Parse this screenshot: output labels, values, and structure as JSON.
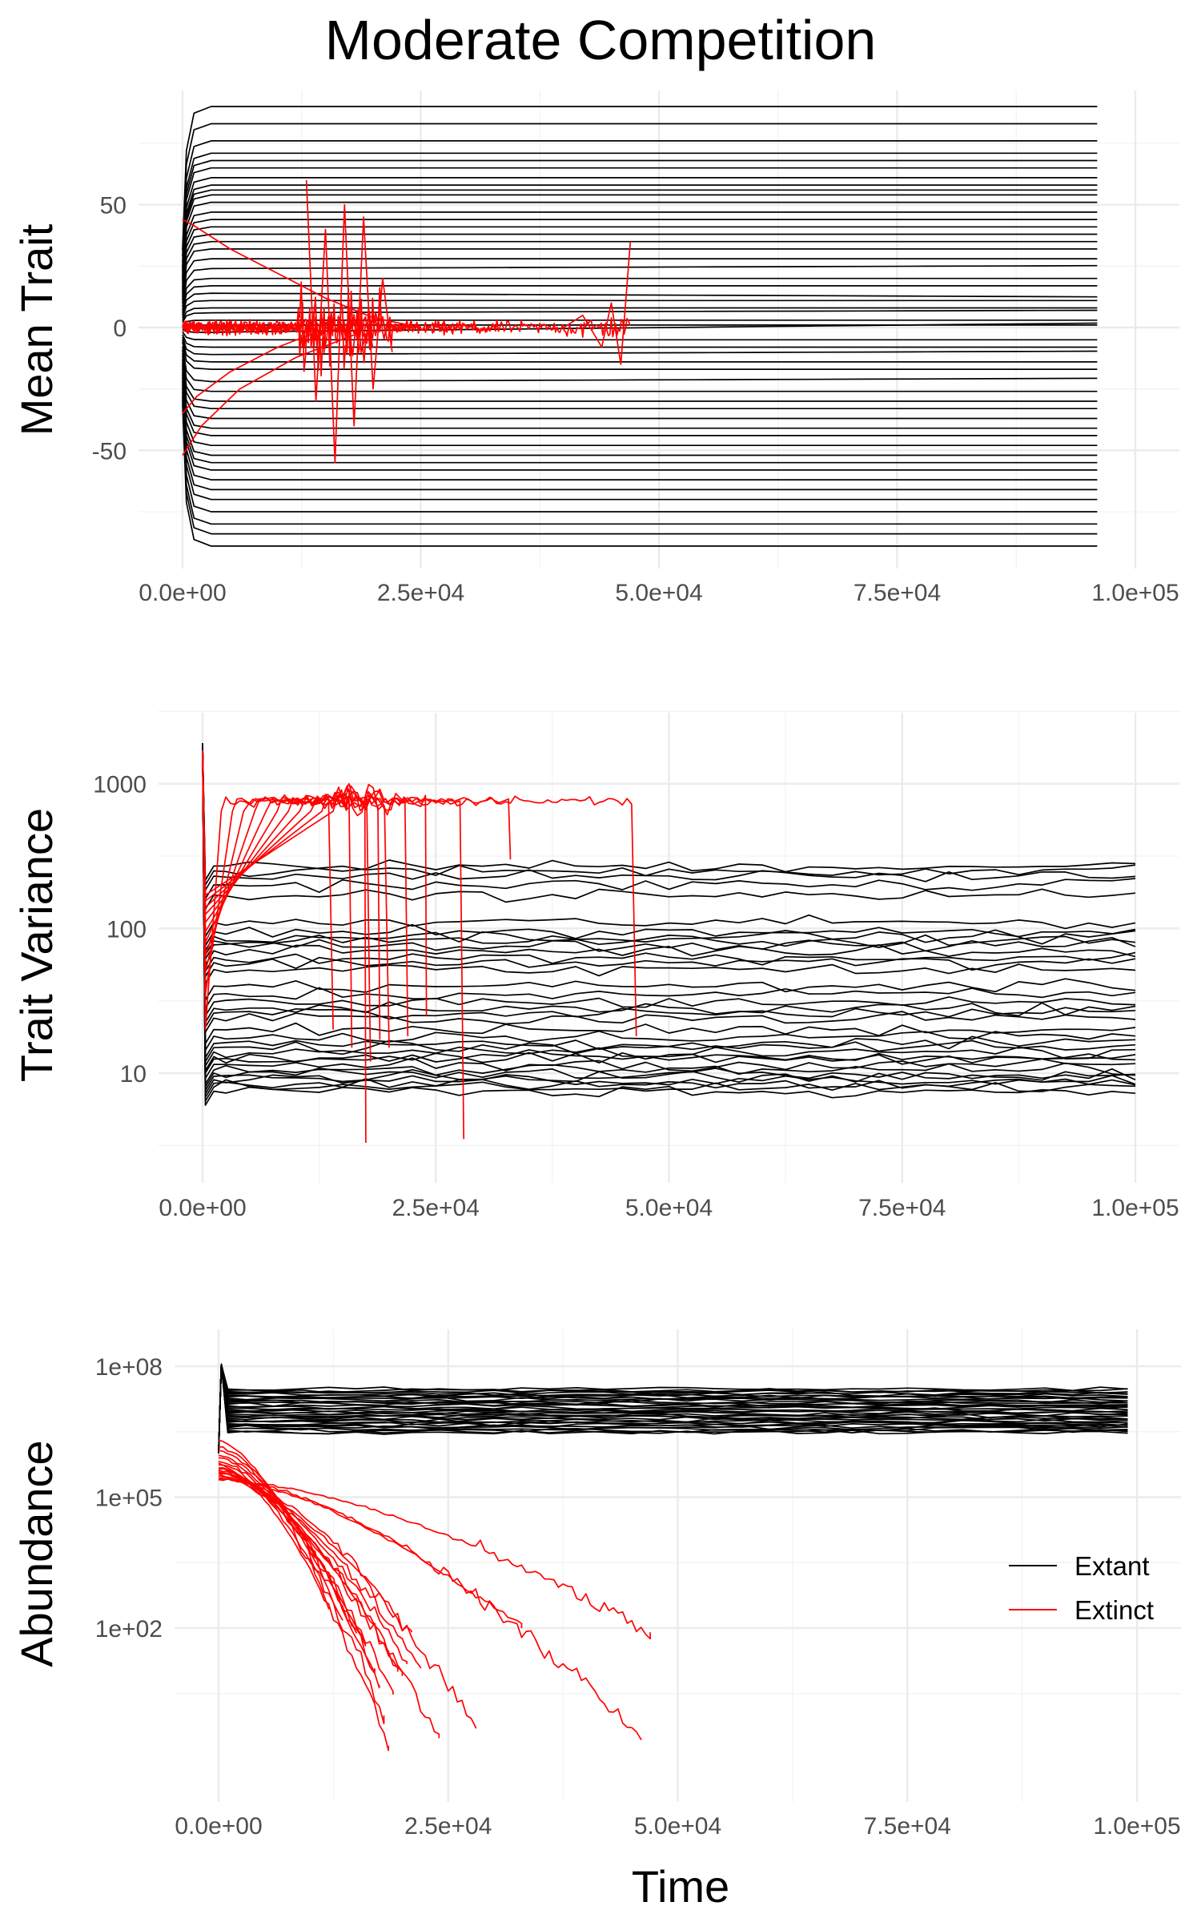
{
  "figure": {
    "title": "Moderate Competition",
    "colors": {
      "extant": "#000000",
      "extinct": "#ff0000",
      "grid": "#ebebeb",
      "tick_text": "#4d4d4d"
    }
  },
  "chart_data": [
    {
      "id": "mean_trait",
      "type": "line",
      "ylabel": "Mean Trait",
      "xlabel": "",
      "x_scale": "linear",
      "y_scale": "linear",
      "xlim": [
        0,
        100000
      ],
      "ylim": [
        -90,
        90
      ],
      "x_ticks": [
        0,
        25000,
        50000,
        75000,
        100000
      ],
      "x_tick_labels": [
        "0.0e+00",
        "2.5e+04",
        "5.0e+04",
        "7.5e+04",
        "1.0e+05"
      ],
      "y_ticks": [
        -50,
        0,
        50
      ],
      "y_tick_labels": [
        "-50",
        "0",
        "50"
      ],
      "grid": true,
      "extant_final_traits": [
        90,
        83,
        76,
        71,
        68,
        65,
        61,
        58,
        56,
        54,
        51,
        47,
        44,
        41,
        38,
        35,
        32,
        28,
        24,
        20,
        17,
        14,
        11,
        8,
        6,
        3,
        1,
        -2,
        -5,
        -8,
        -11,
        -14,
        -17,
        -22,
        -26,
        -30,
        -33,
        -37,
        -41,
        -44,
        -48,
        -52,
        -55,
        -58,
        -62,
        -66,
        -70,
        -75,
        -80,
        -84,
        -89
      ],
      "extinct_trajectories": [
        {
          "x": [
            0,
            1000,
            5000,
            10000,
            15000,
            20000,
            25000
          ],
          "y": [
            44,
            42,
            32,
            22,
            12,
            4,
            0
          ]
        },
        {
          "x": [
            0,
            2000,
            6000,
            12000,
            18000
          ],
          "y": [
            -52,
            -40,
            -25,
            -12,
            -3
          ]
        },
        {
          "x": [
            0,
            1500,
            5000,
            10000,
            14000
          ],
          "y": [
            -35,
            -28,
            -18,
            -8,
            -2
          ]
        },
        {
          "x": [
            13000,
            14000,
            15000,
            16000,
            17000,
            18000,
            19000,
            20000,
            21000,
            22000
          ],
          "y": [
            60,
            -30,
            40,
            -55,
            50,
            -40,
            45,
            -25,
            20,
            -10
          ]
        },
        {
          "x": [
            40000,
            42000,
            44000,
            45000,
            46000,
            47000
          ],
          "y": [
            0,
            5,
            -8,
            10,
            -15,
            35
          ]
        }
      ]
    },
    {
      "id": "trait_variance",
      "type": "line",
      "ylabel": "Trait Variance",
      "xlabel": "",
      "x_scale": "linear",
      "y_scale": "log10",
      "xlim": [
        0,
        100000
      ],
      "ylim": [
        2.4,
        2400
      ],
      "x_ticks": [
        0,
        25000,
        50000,
        75000,
        100000
      ],
      "x_tick_labels": [
        "0.0e+00",
        "2.5e+04",
        "5.0e+04",
        "7.5e+04",
        "1.0e+05"
      ],
      "y_ticks": [
        10,
        100,
        1000
      ],
      "y_tick_labels": [
        "10",
        "100",
        "1000"
      ],
      "grid": true,
      "extant_final_variances": [
        270,
        250,
        230,
        200,
        170,
        110,
        95,
        88,
        82,
        77,
        70,
        63,
        58,
        52,
        40,
        35,
        31,
        28,
        26,
        24,
        20,
        18,
        16,
        15,
        14,
        13,
        12.5,
        11.5,
        10.5,
        10,
        9.5,
        9,
        8.5,
        8,
        7.5
      ],
      "extinct_plateau": 760,
      "extinct_end_times": [
        14000,
        16000,
        17500,
        18000,
        19000,
        20000,
        22000,
        24000,
        28000,
        33000,
        46500
      ],
      "extinct_min_values": [
        20,
        15,
        3.3,
        12,
        17,
        15,
        18,
        25,
        3.5,
        300,
        18
      ]
    },
    {
      "id": "abundance",
      "type": "line",
      "ylabel": "Abundance",
      "xlabel": "Time",
      "x_scale": "linear",
      "y_scale": "log10",
      "xlim": [
        0,
        100000
      ],
      "ylim": [
        0.03,
        300000000
      ],
      "x_ticks": [
        0,
        25000,
        50000,
        75000,
        100000
      ],
      "x_tick_labels": [
        "0.0e+00",
        "2.5e+04",
        "5.0e+04",
        "7.5e+04",
        "1.0e+05"
      ],
      "y_ticks": [
        100,
        100000,
        100000000
      ],
      "y_tick_labels": [
        "1e+02",
        "1e+05",
        "1e+08"
      ],
      "grid": true,
      "extant_abundance_range": [
        3000000,
        30000000
      ],
      "extinct_start": 2000000,
      "extinct_end_times": [
        12000,
        13500,
        15000,
        16000,
        17000,
        17500,
        18000,
        18500,
        19000,
        19500,
        20000,
        20500,
        21000,
        22000,
        24000,
        28000,
        33000,
        46000,
        47000
      ],
      "extinct_final_values": [
        300,
        150,
        80,
        40,
        12,
        5,
        1,
        0.2,
        3,
        10,
        8,
        15,
        80,
        12,
        0.3,
        0.5,
        100,
        0.3,
        80
      ],
      "legend": {
        "position": "right",
        "entries": [
          {
            "label": "Extant",
            "color": "#000000"
          },
          {
            "label": "Extinct",
            "color": "#ff0000"
          }
        ]
      }
    }
  ]
}
